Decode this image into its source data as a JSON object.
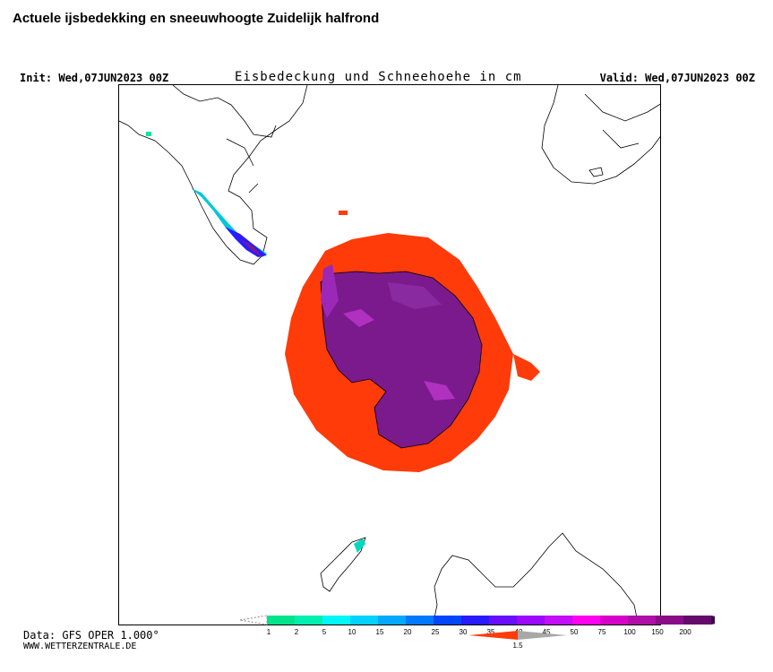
{
  "page": {
    "title": "Actuele ijsbedekking en sneeuwhoogte Zuidelijk halfrond"
  },
  "map": {
    "init_label": "Init: Wed,07JUN2023 00Z",
    "valid_label": "Valid: Wed,07JUN2023 00Z",
    "title": "Eisbedeckung und Schneehoehe in cm",
    "colors": {
      "sea_ice": "#ff3b0a",
      "snow_heavy": "#7a1a8c",
      "snow_medium": "#b030c0",
      "coastline": "#000000"
    }
  },
  "legend": {
    "snow_ticks": [
      "1",
      "2",
      "5",
      "10",
      "15",
      "20",
      "25",
      "30",
      "35",
      "40",
      "45",
      "50",
      "75",
      "100",
      "150",
      "200"
    ],
    "snow_colors": [
      "#00e38a",
      "#00eeb0",
      "#00f7f7",
      "#00d2ff",
      "#00a9ff",
      "#0078ff",
      "#0046ff",
      "#2a1aff",
      "#6a0dff",
      "#9c08ff",
      "#c40ef7",
      "#ff00f0",
      "#d800c8",
      "#b00ea8",
      "#8a0c88",
      "#640a6a"
    ],
    "ice_tick": "1.5",
    "ice_colors": [
      "#ff3b0a",
      "#a8a8a8"
    ]
  },
  "footer": {
    "data_source": "Data: GFS OPER 1.000°",
    "website": "WWW.WETTERZENTRALE.DE"
  }
}
